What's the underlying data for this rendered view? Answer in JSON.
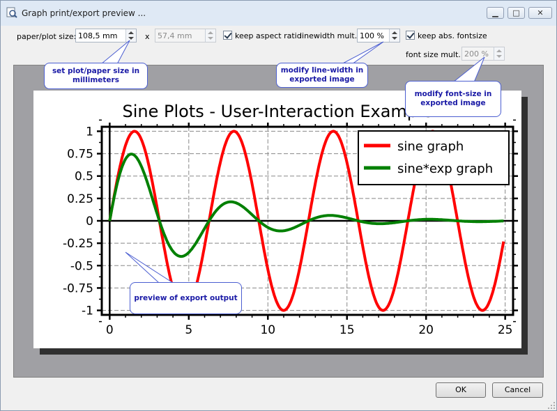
{
  "window": {
    "title": "Graph print/export preview ...",
    "minimize_glyph": "▁",
    "maximize_glyph": "□",
    "close_glyph": "✕"
  },
  "controls": {
    "paper_size_label": "paper/plot size:",
    "width_value": "108,5 mm",
    "times_label": "x",
    "height_value": "57,4 mm",
    "keep_aspect_label": "keep aspect ratio",
    "keep_aspect_checked": true,
    "linewidth_label": "linewidth mult.:",
    "linewidth_value": "100 %",
    "keep_fontsize_label": "keep abs. fontsize",
    "keep_fontsize_checked": true,
    "fontsize_label": "font size mult.:",
    "fontsize_value": "200 %"
  },
  "callouts": {
    "size": "set plot/paper size in millimeters",
    "linewidth": "modify line-width in exported image",
    "fontsize": "modify font-size in exported image",
    "preview": "preview of export output"
  },
  "buttons": {
    "ok": "OK",
    "cancel": "Cancel"
  },
  "chart_data": {
    "type": "line",
    "title": "Sine Plots - User-Interaction Example",
    "xlim": [
      -0.5,
      25.5
    ],
    "ylim": [
      -1.05,
      1.05
    ],
    "xticks": [
      "0",
      "5",
      "10",
      "15",
      "20",
      "25"
    ],
    "yticks": [
      "1",
      "0.75",
      "0.5",
      "0.25",
      "0",
      "-0.25",
      "-0.5",
      "-0.75",
      "-1"
    ],
    "grid": true,
    "legend_position": "top-right",
    "series": [
      {
        "name": "sine graph",
        "color": "#ff0000",
        "function": "sin(x)",
        "x_range": [
          0,
          24.9
        ]
      },
      {
        "name": "sine*exp graph",
        "color": "#008000",
        "function": "sin(x)*exp(-x/5)",
        "x_range": [
          0,
          24.9
        ]
      }
    ]
  }
}
